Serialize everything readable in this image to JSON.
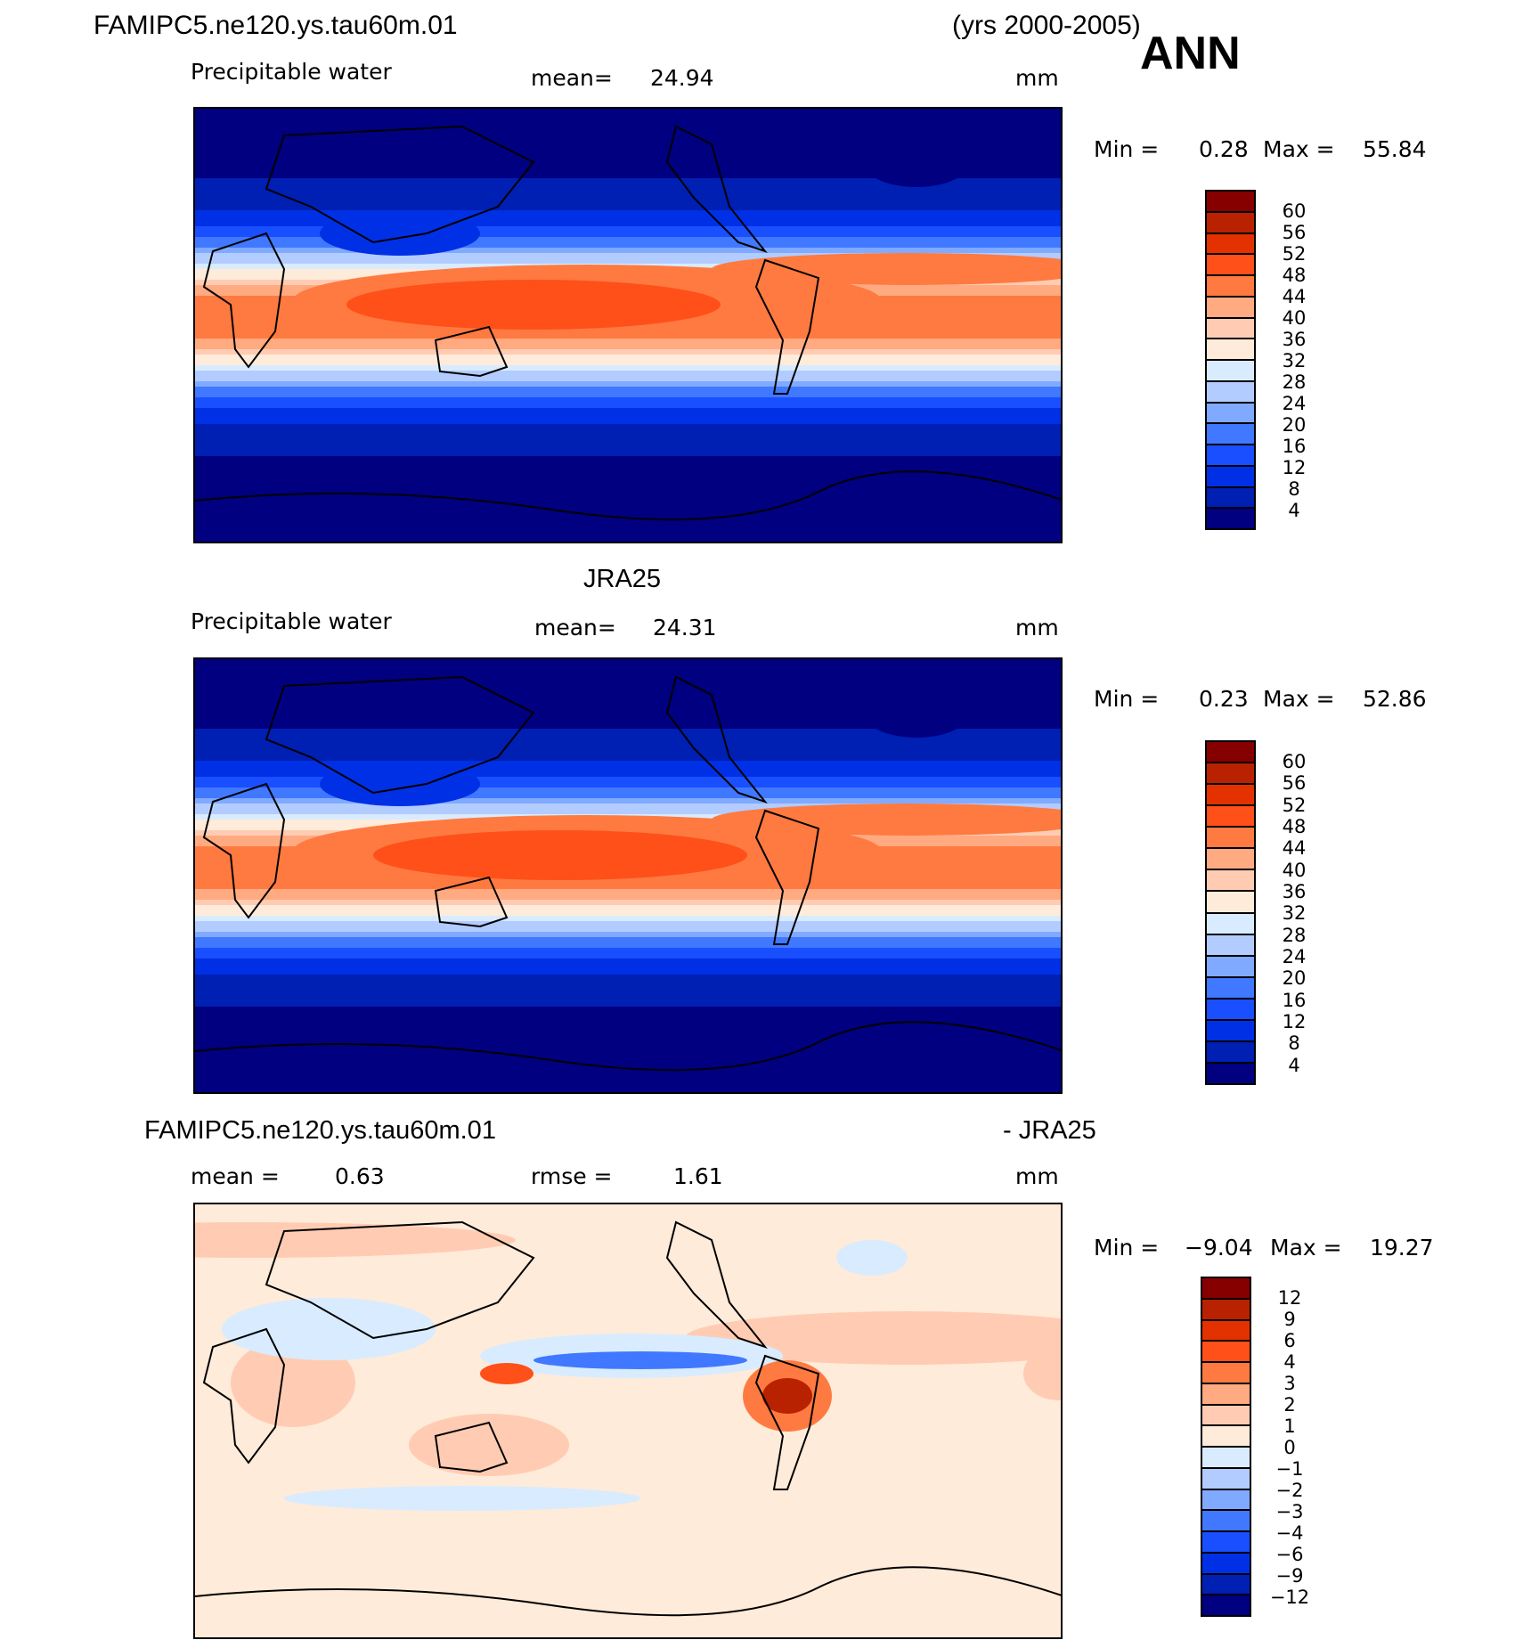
{
  "header": {
    "case": "FAMIPC5.ne120.ys.tau60m.01",
    "years": "(yrs 2000-2005)",
    "season": "ANN"
  },
  "panels": [
    {
      "title": "FAMIPC5.ne120.ys.tau60m.01",
      "variable": "Precipitable water",
      "mean_label": "mean=",
      "mean": "24.94",
      "units": "mm",
      "min_label": "Min =",
      "min": "0.28",
      "max_label": "Max =",
      "max": "55.84"
    },
    {
      "title": "JRA25",
      "variable": "Precipitable water",
      "mean_label": "mean=",
      "mean": "24.31",
      "units": "mm",
      "min_label": "Min =",
      "min": "0.23",
      "max_label": "Max =",
      "max": "52.86"
    },
    {
      "title": "FAMIPC5.ne120.ys.tau60m.01",
      "title_right": "- JRA25",
      "mean_label": "mean =",
      "mean": "0.63",
      "rmse_label": "rmse =",
      "rmse": "1.61",
      "units": "mm",
      "min_label": "Min =",
      "min": "−9.04",
      "max_label": "Max =",
      "max": "19.27"
    }
  ],
  "colorbar": {
    "colors": [
      "#870000",
      "#b82200",
      "#e33200",
      "#ff5019",
      "#ff7a40",
      "#ffaa80",
      "#ffccb3",
      "#ffebd9",
      "#d9ebff",
      "#b3ccff",
      "#80aaff",
      "#4078ff",
      "#1a4fff",
      "#0030e6",
      "#001fb3",
      "#000080"
    ],
    "levels_abs": [
      "60",
      "56",
      "52",
      "48",
      "44",
      "40",
      "36",
      "32",
      "28",
      "24",
      "20",
      "16",
      "12",
      "8",
      "4"
    ],
    "levels_diff": [
      "12",
      "9",
      "6",
      "4",
      "3",
      "2",
      "1",
      "0",
      "−1",
      "−2",
      "−3",
      "−4",
      "−6",
      "−9",
      "−12"
    ]
  }
}
